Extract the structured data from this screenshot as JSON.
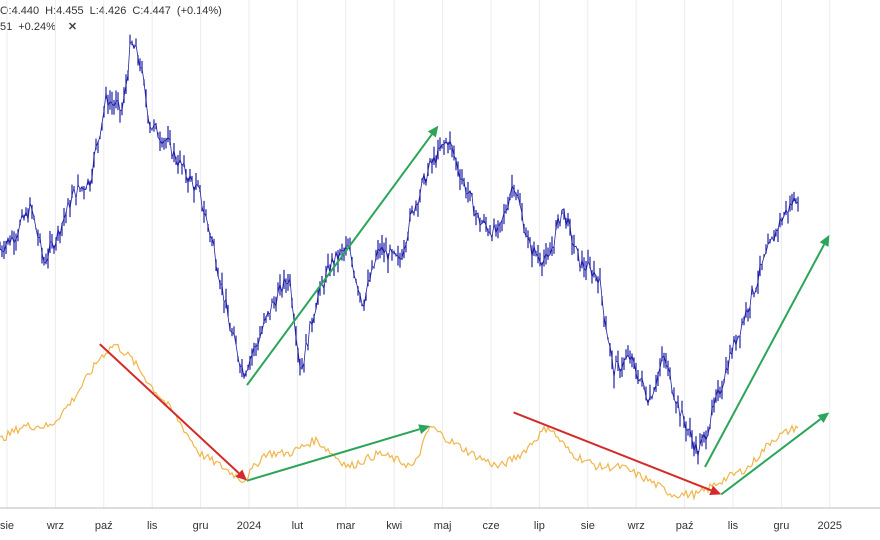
{
  "legend": {
    "row1": {
      "open": "O:4.440",
      "high": "H:4.455",
      "low": "L:4.426",
      "close": "C:4.447",
      "change": "(+0.14%)"
    },
    "row2": {
      "value": "51",
      "change": "+0.24%",
      "close_symbol": "✕"
    }
  },
  "colors": {
    "price": "#1f1fa8",
    "indicator": "#f0b64a",
    "arrow_up": "#2ca55a",
    "arrow_down": "#d42a2a",
    "grid": "#ececec",
    "axis": "#bbbbbb"
  },
  "chart_data": {
    "type": "line",
    "title": "",
    "xlabel": "",
    "ylabel": "",
    "grid": true,
    "x_ticks": [
      "sie",
      "wrz",
      "paź",
      "lis",
      "gru",
      "2024",
      "lut",
      "mar",
      "kwi",
      "maj",
      "cze",
      "lip",
      "sie",
      "wrz",
      "paź",
      "lis",
      "gru",
      "2025"
    ],
    "x_range": [
      "2023-08-01",
      "2025-01-20"
    ],
    "y_range": [
      4.25,
      4.6
    ],
    "series": [
      {
        "role": "price",
        "style": "ohlc-bars",
        "points": [
          [
            "2023-08-01",
            4.44
          ],
          [
            "2023-08-10",
            4.45
          ],
          [
            "2023-08-20",
            4.47
          ],
          [
            "2023-08-28",
            4.43
          ],
          [
            "2023-09-05",
            4.45
          ],
          [
            "2023-09-15",
            4.48
          ],
          [
            "2023-09-25",
            4.49
          ],
          [
            "2023-10-05",
            4.55
          ],
          [
            "2023-10-15",
            4.54
          ],
          [
            "2023-10-20",
            4.59
          ],
          [
            "2023-10-25",
            4.58
          ],
          [
            "2023-11-01",
            4.53
          ],
          [
            "2023-11-10",
            4.52
          ],
          [
            "2023-11-20",
            4.5
          ],
          [
            "2023-12-01",
            4.48
          ],
          [
            "2023-12-10",
            4.44
          ],
          [
            "2023-12-20",
            4.38
          ],
          [
            "2023-12-28",
            4.35
          ],
          [
            "2024-01-05",
            4.37
          ],
          [
            "2024-01-15",
            4.4
          ],
          [
            "2024-01-25",
            4.42
          ],
          [
            "2024-02-01",
            4.35
          ],
          [
            "2024-02-10",
            4.4
          ],
          [
            "2024-02-20",
            4.43
          ],
          [
            "2024-03-01",
            4.44
          ],
          [
            "2024-03-10",
            4.4
          ],
          [
            "2024-03-20",
            4.44
          ],
          [
            "2024-04-01",
            4.43
          ],
          [
            "2024-04-10",
            4.47
          ],
          [
            "2024-04-20",
            4.5
          ],
          [
            "2024-05-01",
            4.52
          ],
          [
            "2024-05-10",
            4.49
          ],
          [
            "2024-05-20",
            4.46
          ],
          [
            "2024-06-01",
            4.45
          ],
          [
            "2024-06-10",
            4.49
          ],
          [
            "2024-06-20",
            4.44
          ],
          [
            "2024-07-01",
            4.43
          ],
          [
            "2024-07-10",
            4.47
          ],
          [
            "2024-07-20",
            4.43
          ],
          [
            "2024-08-01",
            4.42
          ],
          [
            "2024-08-10",
            4.35
          ],
          [
            "2024-08-20",
            4.36
          ],
          [
            "2024-09-01",
            4.33
          ],
          [
            "2024-09-10",
            4.36
          ],
          [
            "2024-09-20",
            4.32
          ],
          [
            "2024-10-01",
            4.29
          ],
          [
            "2024-10-10",
            4.32
          ],
          [
            "2024-10-20",
            4.36
          ],
          [
            "2024-11-01",
            4.4
          ],
          [
            "2024-11-10",
            4.43
          ],
          [
            "2024-11-20",
            4.46
          ],
          [
            "2024-12-01",
            4.48
          ]
        ]
      },
      {
        "role": "indicator",
        "style": "line",
        "points": [
          [
            "2023-08-01",
            4.3
          ],
          [
            "2023-08-15",
            4.31
          ],
          [
            "2023-09-01",
            4.31
          ],
          [
            "2023-09-15",
            4.33
          ],
          [
            "2023-10-01",
            4.36
          ],
          [
            "2023-10-10",
            4.37
          ],
          [
            "2023-10-20",
            4.36
          ],
          [
            "2023-11-01",
            4.34
          ],
          [
            "2023-11-15",
            4.32
          ],
          [
            "2023-12-01",
            4.29
          ],
          [
            "2023-12-15",
            4.28
          ],
          [
            "2023-12-28",
            4.27
          ],
          [
            "2024-01-10",
            4.29
          ],
          [
            "2024-01-25",
            4.29
          ],
          [
            "2024-02-10",
            4.3
          ],
          [
            "2024-03-01",
            4.28
          ],
          [
            "2024-03-20",
            4.29
          ],
          [
            "2024-04-10",
            4.28
          ],
          [
            "2024-04-20",
            4.31
          ],
          [
            "2024-05-01",
            4.3
          ],
          [
            "2024-05-15",
            4.29
          ],
          [
            "2024-06-01",
            4.28
          ],
          [
            "2024-06-15",
            4.29
          ],
          [
            "2024-07-01",
            4.31
          ],
          [
            "2024-07-15",
            4.29
          ],
          [
            "2024-08-01",
            4.28
          ],
          [
            "2024-08-15",
            4.28
          ],
          [
            "2024-09-01",
            4.27
          ],
          [
            "2024-09-15",
            4.26
          ],
          [
            "2024-10-01",
            4.26
          ],
          [
            "2024-10-15",
            4.27
          ],
          [
            "2024-11-01",
            4.28
          ],
          [
            "2024-11-15",
            4.3
          ],
          [
            "2024-12-01",
            4.31
          ]
        ]
      }
    ],
    "annotations": [
      {
        "type": "arrow",
        "color": "up",
        "from": [
          "2023-12-30",
          4.34
        ],
        "to": [
          "2024-04-25",
          4.53
        ]
      },
      {
        "type": "arrow",
        "color": "up",
        "from": [
          "2024-10-05",
          4.28
        ],
        "to": [
          "2024-12-20",
          4.45
        ]
      },
      {
        "type": "arrow",
        "color": "down",
        "from": [
          "2023-10-01",
          4.37
        ],
        "to": [
          "2023-12-30",
          4.27
        ]
      },
      {
        "type": "arrow",
        "color": "up",
        "from": [
          "2023-12-30",
          4.27
        ],
        "to": [
          "2024-04-20",
          4.31
        ]
      },
      {
        "type": "arrow",
        "color": "down",
        "from": [
          "2024-06-10",
          4.32
        ],
        "to": [
          "2024-10-15",
          4.26
        ]
      },
      {
        "type": "arrow",
        "color": "up",
        "from": [
          "2024-10-15",
          4.26
        ],
        "to": [
          "2024-12-20",
          4.32
        ]
      }
    ]
  }
}
